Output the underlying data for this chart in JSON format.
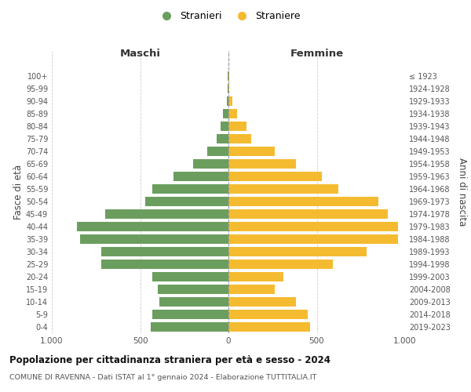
{
  "age_groups": [
    "0-4",
    "5-9",
    "10-14",
    "15-19",
    "20-24",
    "25-29",
    "30-34",
    "35-39",
    "40-44",
    "45-49",
    "50-54",
    "55-59",
    "60-64",
    "65-69",
    "70-74",
    "75-79",
    "80-84",
    "85-89",
    "90-94",
    "95-99",
    "100+"
  ],
  "birth_years": [
    "2019-2023",
    "2014-2018",
    "2009-2013",
    "2004-2008",
    "1999-2003",
    "1994-1998",
    "1989-1993",
    "1984-1988",
    "1979-1983",
    "1974-1978",
    "1969-1973",
    "1964-1968",
    "1959-1963",
    "1954-1958",
    "1949-1953",
    "1944-1948",
    "1939-1943",
    "1934-1938",
    "1929-1933",
    "1924-1928",
    "≤ 1923"
  ],
  "maschi": [
    440,
    430,
    390,
    400,
    430,
    720,
    720,
    840,
    860,
    700,
    470,
    430,
    310,
    200,
    120,
    65,
    45,
    30,
    10,
    5,
    5
  ],
  "femmine": [
    460,
    450,
    380,
    260,
    310,
    590,
    780,
    960,
    960,
    900,
    850,
    620,
    530,
    380,
    260,
    130,
    100,
    50,
    20,
    5,
    5
  ],
  "maschi_color": "#6b9e5e",
  "femmine_color": "#f5bb30",
  "background_color": "#ffffff",
  "grid_color": "#cccccc",
  "title": "Popolazione per cittadinanza straniera per età e sesso - 2024",
  "subtitle": "COMUNE DI RAVENNA - Dati ISTAT al 1° gennaio 2024 - Elaborazione TUTTITALIA.IT",
  "ylabel_left": "Fasce di età",
  "ylabel_right": "Anni di nascita",
  "xlabel_left": "Maschi",
  "xlabel_right": "Femmine",
  "legend_maschi": "Stranieri",
  "legend_femmine": "Straniere",
  "xlim": 1000,
  "xticklabels": [
    "1.000",
    "500",
    "0",
    "500",
    "1.000"
  ]
}
